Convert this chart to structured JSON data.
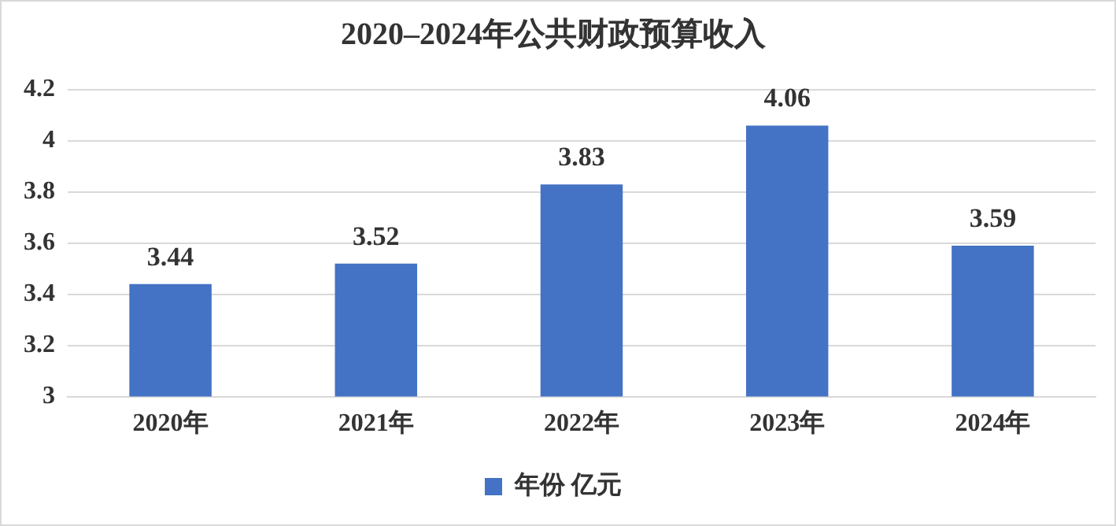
{
  "chart_data": {
    "type": "bar",
    "title": "2020–2024年公共财政预算收入",
    "categories": [
      "2020年",
      "2021年",
      "2022年",
      "2023年",
      "2024年"
    ],
    "series": [
      {
        "name": "年份 亿元",
        "color": "#4472c4",
        "values": [
          3.44,
          3.52,
          3.83,
          4.06,
          3.59
        ]
      }
    ],
    "ylim": [
      3,
      4.2
    ],
    "yticks": [
      3,
      3.2,
      3.4,
      3.6,
      3.8,
      4,
      4.2
    ],
    "grid": "y",
    "legend": "bottom",
    "data_labels": true
  }
}
